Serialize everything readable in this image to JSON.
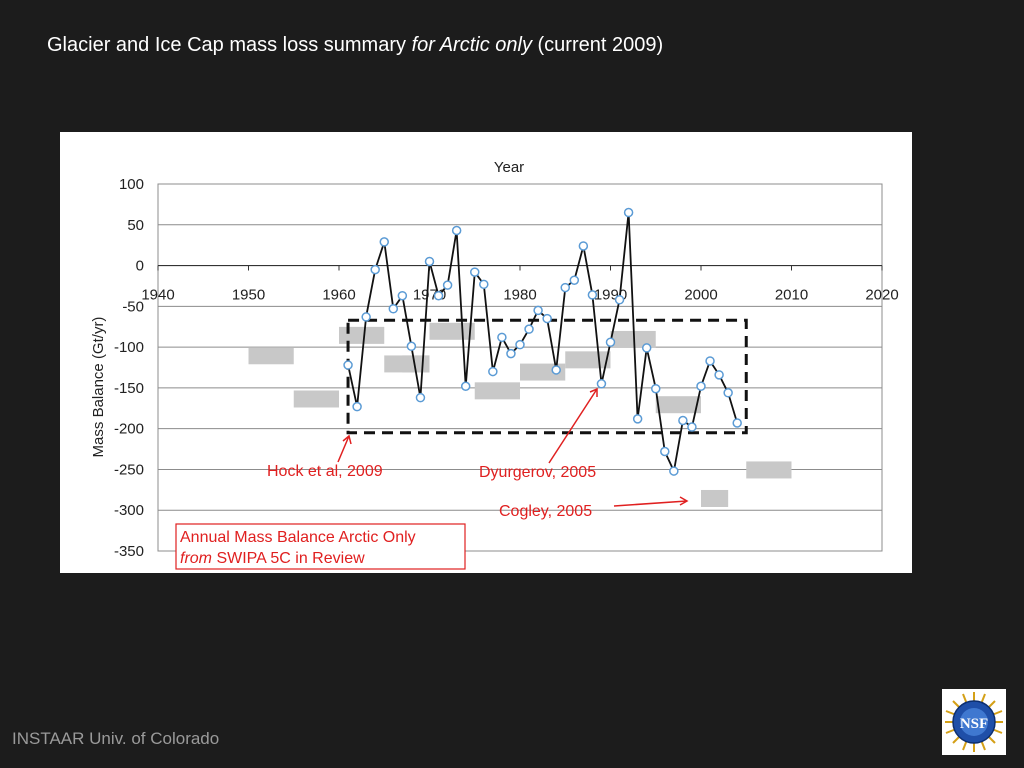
{
  "slide": {
    "title_pre": "Glacier and Ice Cap mass loss summary ",
    "title_em": "for Arctic only",
    "title_post": " (current 2009)",
    "footer": "INSTAAR Univ. of Colorado",
    "logo_text": "NSF"
  },
  "chart_data": {
    "type": "line",
    "title": "Year",
    "ylabel": "Mass Balance (Gt/yr)",
    "xlim": [
      1940,
      2020
    ],
    "ylim": [
      -350,
      100
    ],
    "xticks": [
      1940,
      1950,
      1960,
      1970,
      1980,
      1990,
      2000,
      2010,
      2020
    ],
    "yticks": [
      100,
      50,
      0,
      -50,
      -100,
      -150,
      -200,
      -250,
      -300,
      -350
    ],
    "x_axis_at": 0,
    "grid": "horizontal",
    "series": [
      {
        "x": [
          1961,
          1962,
          1963,
          1964,
          1965,
          1966,
          1967,
          1968,
          1969,
          1970,
          1971,
          1972,
          1973,
          1974,
          1975,
          1976,
          1977,
          1978,
          1979,
          1980,
          1981,
          1982,
          1983,
          1984,
          1985,
          1986,
          1987,
          1988,
          1989,
          1990,
          1991,
          1992,
          1993,
          1994,
          1995,
          1996,
          1997,
          1998,
          1999,
          2000,
          2001,
          2002,
          2003,
          2004
        ],
        "y": [
          -122,
          -173,
          -63,
          -5,
          29,
          -53,
          -37,
          -99,
          -162,
          5,
          -37,
          -24,
          43,
          -148,
          -8,
          -23,
          -130,
          -88,
          -108,
          -97,
          -78,
          -55,
          -65,
          -128,
          -27,
          -18,
          24,
          -36,
          -145,
          -94,
          -42,
          65,
          -188,
          -101,
          -151,
          -228,
          -252,
          -190,
          -198,
          -148,
          -117,
          -134,
          -156,
          -193
        ],
        "color": "#111111",
        "marker": "open-circle",
        "marker_color": "#5b9bd5"
      }
    ],
    "estimate_bars": [
      {
        "x": [
          1950,
          1955
        ],
        "y": -110
      },
      {
        "x": [
          1955,
          1960
        ],
        "y": -163
      },
      {
        "x": [
          1960,
          1965
        ],
        "y": -85
      },
      {
        "x": [
          1965,
          1970
        ],
        "y": -120
      },
      {
        "x": [
          1967,
          1970
        ],
        "y": -120
      },
      {
        "x": [
          1970,
          1975
        ],
        "y": -80
      },
      {
        "x": [
          1975,
          1980
        ],
        "y": -153
      },
      {
        "x": [
          1980,
          1985
        ],
        "y": -130
      },
      {
        "x": [
          1985,
          1990
        ],
        "y": -115
      },
      {
        "x": [
          1990,
          1995
        ],
        "y": -90
      },
      {
        "x": [
          1995,
          2000
        ],
        "y": -170
      },
      {
        "x": [
          2000,
          2003
        ],
        "y": -285
      },
      {
        "x": [
          2005,
          2010
        ],
        "y": -250
      }
    ],
    "estimate_bar_color": "#c8c8c8",
    "dashed_box": {
      "x": [
        1961,
        2005
      ],
      "y": [
        -67,
        -205
      ]
    },
    "annotations": {
      "hock": "Hock et al, 2009",
      "dyurgerov": "Dyurgerov, 2005",
      "cogley": "Cogley, 2005",
      "box_line1": "Annual Mass Balance Arctic Only",
      "box_line2_em": "from",
      "box_line2_rest": " SWIPA 5C in Review"
    },
    "annotation_color": "#e02020"
  }
}
